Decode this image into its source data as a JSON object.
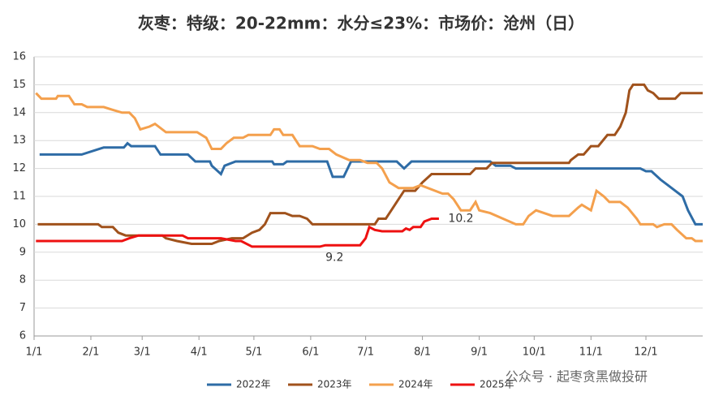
{
  "chart_data": {
    "type": "line",
    "title": "灰枣：特级：20-22mm：水分≤23%：市场价：沧州（日）",
    "xlim": [
      0,
      365
    ],
    "xticks": [
      {
        "value": 0,
        "label": "1/1"
      },
      {
        "value": 31,
        "label": "2/1"
      },
      {
        "value": 59,
        "label": "3/1"
      },
      {
        "value": 90,
        "label": "4/1"
      },
      {
        "value": 120,
        "label": "5/1"
      },
      {
        "value": 151,
        "label": "6/1"
      },
      {
        "value": 181,
        "label": "7/1"
      },
      {
        "value": 212,
        "label": "8/1"
      },
      {
        "value": 243,
        "label": "9/1"
      },
      {
        "value": 273,
        "label": "10/1"
      },
      {
        "value": 304,
        "label": "11/1"
      },
      {
        "value": 334,
        "label": "12/1"
      }
    ],
    "ylim": [
      6,
      16
    ],
    "yticks": [
      6,
      7,
      8,
      9,
      10,
      11,
      12,
      13,
      14,
      15,
      16
    ],
    "grid": true,
    "series": [
      {
        "name": "2022年",
        "color": "#2e6ca6",
        "x": [
          3,
          26,
          38,
          49,
          51,
          53,
          66,
          69,
          84,
          88,
          96,
          97,
          102,
          104,
          110,
          130,
          131,
          136,
          138,
          160,
          163,
          169,
          173,
          198,
          202,
          206,
          249,
          252,
          260,
          263,
          331,
          334,
          337,
          342,
          346,
          350,
          354,
          357,
          361,
          365
        ],
        "values": [
          12.5,
          12.5,
          12.75,
          12.75,
          12.9,
          12.8,
          12.8,
          12.5,
          12.5,
          12.25,
          12.25,
          12.1,
          11.8,
          12.1,
          12.25,
          12.25,
          12.15,
          12.15,
          12.25,
          12.25,
          11.7,
          11.7,
          12.25,
          12.25,
          12.0,
          12.25,
          12.25,
          12.1,
          12.1,
          12.0,
          12.0,
          11.9,
          11.9,
          11.6,
          11.4,
          11.2,
          11.0,
          10.5,
          10.0,
          10.0
        ]
      },
      {
        "name": "2023年",
        "color": "#a0521c",
        "x": [
          2,
          35,
          37,
          43,
          46,
          50,
          70,
          72,
          78,
          86,
          97,
          101,
          108,
          114,
          119,
          123,
          126,
          129,
          137,
          141,
          145,
          149,
          152,
          186,
          188,
          192,
          195,
          199,
          202,
          208,
          212,
          217,
          238,
          241,
          247,
          250,
          292,
          293,
          297,
          300,
          304,
          308,
          313,
          317,
          320,
          323,
          325,
          327,
          333,
          335,
          338,
          341,
          350,
          353,
          365
        ],
        "values": [
          10.0,
          10.0,
          9.9,
          9.9,
          9.7,
          9.6,
          9.6,
          9.5,
          9.4,
          9.3,
          9.3,
          9.4,
          9.5,
          9.5,
          9.7,
          9.8,
          10.0,
          10.4,
          10.4,
          10.3,
          10.3,
          10.2,
          10.0,
          10.0,
          10.2,
          10.2,
          10.5,
          10.9,
          11.2,
          11.2,
          11.5,
          11.8,
          11.8,
          12.0,
          12.0,
          12.2,
          12.2,
          12.3,
          12.5,
          12.5,
          12.8,
          12.8,
          13.2,
          13.2,
          13.5,
          14.0,
          14.8,
          15.0,
          15.0,
          14.8,
          14.7,
          14.5,
          14.5,
          14.7,
          14.7
        ]
      },
      {
        "name": "2024年",
        "color": "#f4a04d",
        "x": [
          1,
          4,
          12,
          13,
          19,
          22,
          26,
          29,
          38,
          43,
          48,
          52,
          55,
          58,
          63,
          66,
          72,
          89,
          94,
          97,
          102,
          105,
          109,
          114,
          117,
          129,
          131,
          134,
          136,
          141,
          145,
          152,
          156,
          161,
          165,
          172,
          178,
          182,
          187,
          190,
          194,
          199,
          207,
          211,
          223,
          226,
          229,
          233,
          238,
          241,
          243,
          249,
          256,
          263,
          267,
          270,
          274,
          283,
          292,
          297,
          299,
          304,
          307,
          311,
          314,
          320,
          324,
          329,
          331,
          338,
          340,
          344,
          348,
          351,
          356,
          359,
          361,
          365
        ],
        "values": [
          14.7,
          14.5,
          14.5,
          14.6,
          14.6,
          14.3,
          14.3,
          14.2,
          14.2,
          14.1,
          14.0,
          14.0,
          13.8,
          13.4,
          13.5,
          13.6,
          13.3,
          13.3,
          13.1,
          12.7,
          12.7,
          12.9,
          13.1,
          13.1,
          13.2,
          13.2,
          13.4,
          13.4,
          13.2,
          13.2,
          12.8,
          12.8,
          12.7,
          12.7,
          12.5,
          12.3,
          12.3,
          12.2,
          12.2,
          12.0,
          11.5,
          11.3,
          11.3,
          11.4,
          11.1,
          11.1,
          10.9,
          10.5,
          10.5,
          10.8,
          10.5,
          10.4,
          10.2,
          10.0,
          10.0,
          10.3,
          10.5,
          10.3,
          10.3,
          10.6,
          10.7,
          10.5,
          11.2,
          11.0,
          10.8,
          10.8,
          10.6,
          10.2,
          10.0,
          10.0,
          9.9,
          10.0,
          10.0,
          9.8,
          9.5,
          9.5,
          9.4,
          9.4
        ]
      },
      {
        "name": "2025年",
        "color": "#ee1111",
        "x": [
          1,
          48,
          52,
          57,
          81,
          84,
          102,
          110,
          113,
          119,
          156,
          159,
          178,
          181,
          183,
          186,
          190,
          201,
          203,
          205,
          207,
          211,
          213,
          217,
          221
        ],
        "values": [
          9.4,
          9.4,
          9.5,
          9.6,
          9.6,
          9.5,
          9.5,
          9.4,
          9.4,
          9.2,
          9.2,
          9.25,
          9.25,
          9.5,
          9.9,
          9.8,
          9.75,
          9.75,
          9.85,
          9.8,
          9.9,
          9.9,
          10.1,
          10.2,
          10.2
        ]
      }
    ],
    "annotations": [
      {
        "text": "10.2",
        "x": 233,
        "y": 10.2
      },
      {
        "text": "9.2",
        "x": 164,
        "y": 8.8
      }
    ],
    "watermark": "公众号 · 起枣贪黑做投研"
  }
}
